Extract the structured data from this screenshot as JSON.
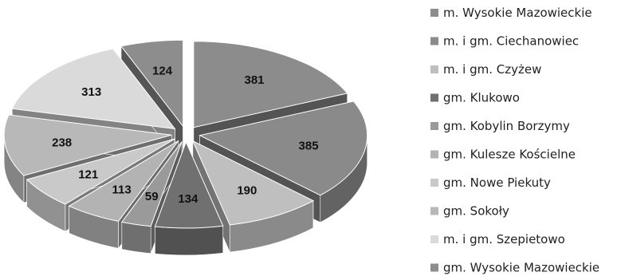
{
  "chart_data": {
    "type": "pie",
    "title": "",
    "categories": [
      "m. Wysokie Mazowieckie",
      "m. i gm. Ciechanowiec",
      "m. i gm. Czyżew",
      "gm. Klukowo",
      "gm. Kobylin Borzymy",
      "gm. Kulesze Kościelne",
      "gm. Nowe Piekuty",
      "gm. Sokoły",
      "m. i gm. Szepietowo",
      "gm. Wysokie Mazowieckie"
    ],
    "values": [
      381,
      385,
      190,
      134,
      59,
      113,
      121,
      238,
      313,
      124
    ],
    "value_labels": [
      "381",
      "385",
      "190",
      "134",
      "59",
      "113",
      "121",
      "238",
      "313",
      "124"
    ],
    "colors": [
      "#8c8c8c",
      "#8a8a8a",
      "#bfbfbf",
      "#707070",
      "#9a9a9a",
      "#b3b3b3",
      "#c9c9c9",
      "#b8b8b8",
      "#dadada",
      "#8d8d8d"
    ],
    "legend_position": "right",
    "style": "exploded-3d-pie"
  }
}
